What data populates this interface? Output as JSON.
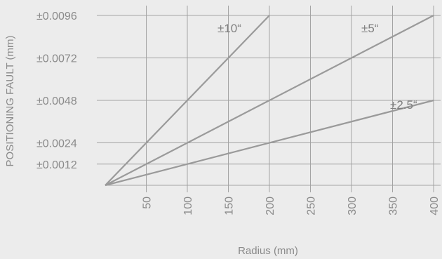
{
  "chart_data": {
    "type": "line",
    "title": "",
    "xlabel": "Radius (mm)",
    "ylabel": "POSITIONING FAULT  (mm)",
    "xlim": [
      0,
      400
    ],
    "ylim": [
      0,
      0.0096
    ],
    "x_ticks": [
      50,
      100,
      150,
      200,
      250,
      300,
      350,
      400
    ],
    "x_tick_labels": [
      "50",
      "100",
      "150",
      "200",
      "250",
      "300",
      "350",
      "400"
    ],
    "y_ticks": [
      0.0012,
      0.0024,
      0.0048,
      0.0072,
      0.0096
    ],
    "y_tick_labels": [
      "±0.0012",
      "±0.0024",
      "±0.0048",
      "±0.0072",
      "±0.0096"
    ],
    "grid": true,
    "series": [
      {
        "name": "±10“",
        "x": [
          0,
          200
        ],
        "y": [
          0,
          0.0096
        ]
      },
      {
        "name": "±5“",
        "x": [
          0,
          400
        ],
        "y": [
          0,
          0.0096
        ]
      },
      {
        "name": "±2.5“",
        "x": [
          0,
          400
        ],
        "y": [
          0,
          0.0048
        ]
      }
    ],
    "colors": {
      "background": "#ececec",
      "grid": "#a3a3a3",
      "line": "#9a9a9a",
      "text": "#8a8a8a"
    }
  }
}
